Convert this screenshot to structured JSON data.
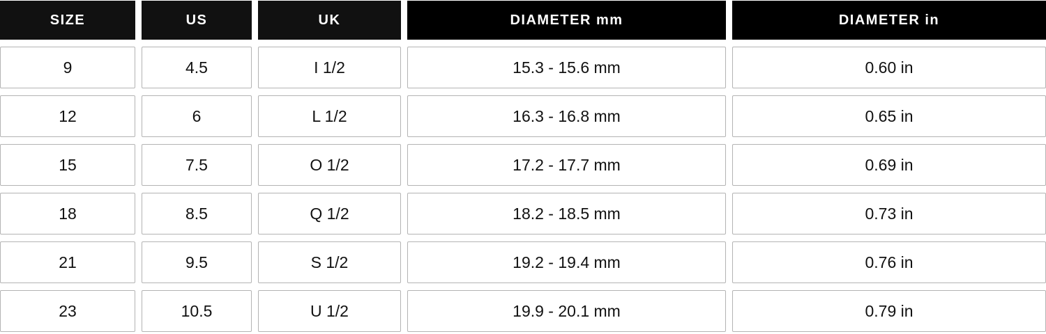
{
  "table": {
    "headers": [
      "SIZE",
      "US",
      "UK",
      "DIAMETER mm",
      "DIAMETER in"
    ],
    "rows": [
      [
        "9",
        "4.5",
        "I 1/2",
        "15.3 - 15.6 mm",
        "0.60 in"
      ],
      [
        "12",
        "6",
        "L 1/2",
        "16.3 - 16.8 mm",
        "0.65 in"
      ],
      [
        "15",
        "7.5",
        "O 1/2",
        "17.2 - 17.7 mm",
        "0.69 in"
      ],
      [
        "18",
        "8.5",
        "Q 1/2",
        "18.2 - 18.5 mm",
        "0.73 in"
      ],
      [
        "21",
        "9.5",
        "S 1/2",
        "19.2 - 19.4 mm",
        "0.76 in"
      ],
      [
        "23",
        "10.5",
        "U 1/2",
        "19.9 - 20.1 mm",
        "0.79 in"
      ]
    ]
  },
  "colors": {
    "header_bg": "#111111",
    "header_text": "#ffffff",
    "cell_border": "#b3b3b3"
  }
}
